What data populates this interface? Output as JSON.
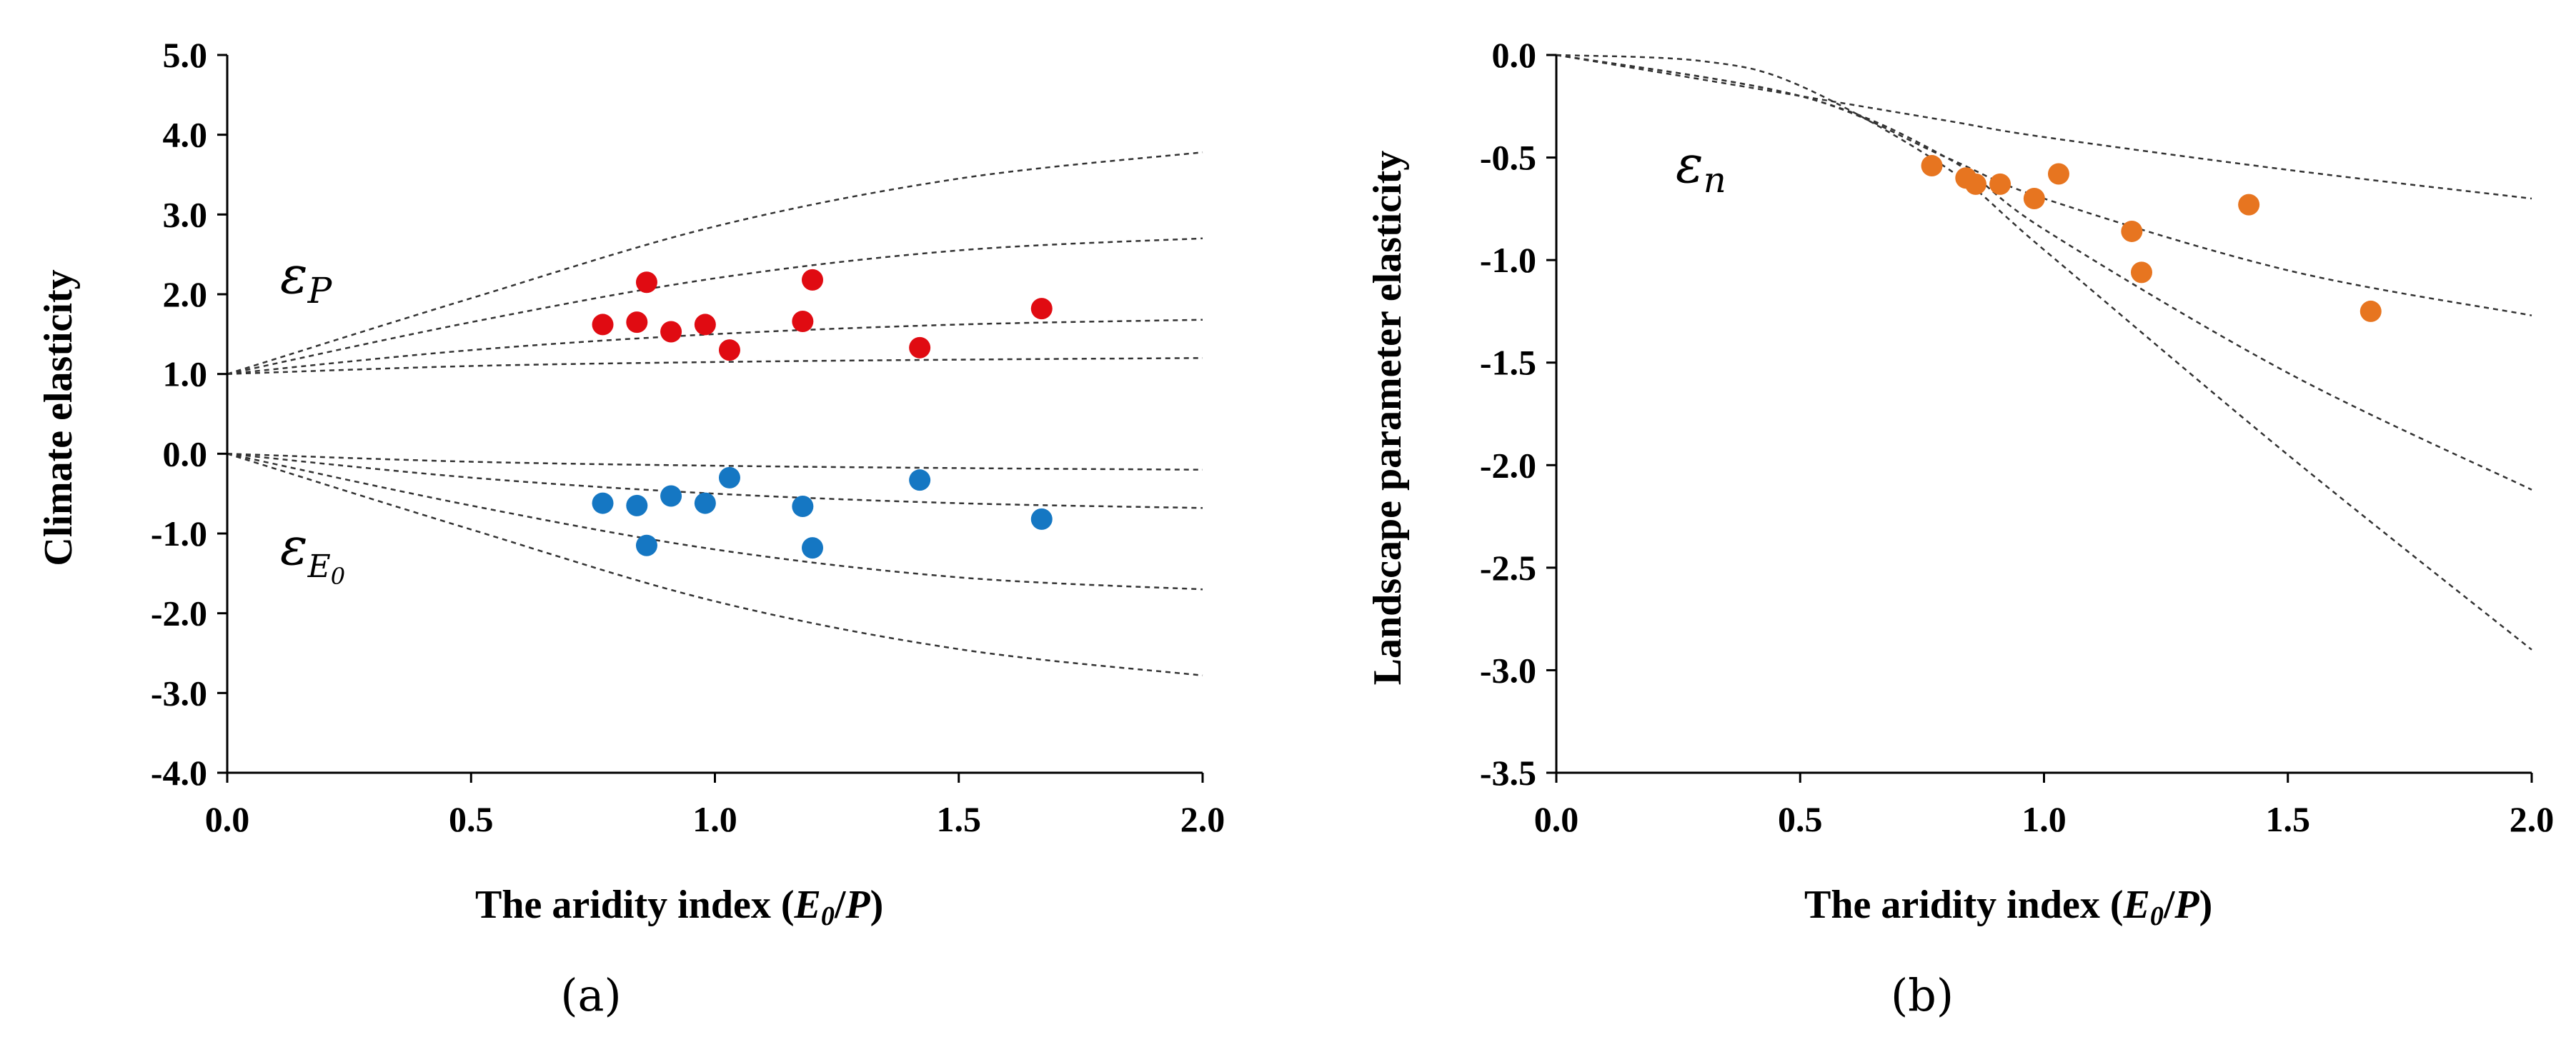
{
  "chart_data": [
    {
      "type": "scatter",
      "panel_label": "(a)",
      "xlabel": "The aridity index (",
      "xlabel_math": {
        "num": "E",
        "num_sub": "0",
        "slash": "/",
        "den": "P",
        "close": ")"
      },
      "ylabel": "Climate elasticity",
      "xlim": [
        0.0,
        2.0
      ],
      "ylim": [
        -4.0,
        5.0
      ],
      "x_ticks": [
        "0.0",
        "0.5",
        "1.0",
        "1.5",
        "2.0"
      ],
      "y_ticks": [
        "-4.0",
        "-3.0",
        "-2.0",
        "-1.0",
        "0.0",
        "1.0",
        "2.0",
        "3.0",
        "4.0",
        "5.0"
      ],
      "annotations": [
        {
          "symbol": "ε",
          "sub": "P",
          "series": "precipitation"
        },
        {
          "symbol": "ε",
          "sub": "E",
          "subsub": "0",
          "series": "evaporation"
        }
      ],
      "series": [
        {
          "name": "ε_P",
          "color": "#e00b12",
          "x": [
            0.77,
            0.84,
            0.86,
            0.91,
            0.98,
            1.03,
            1.18,
            1.2,
            1.42,
            1.67
          ],
          "y": [
            1.62,
            1.65,
            2.15,
            1.53,
            1.62,
            1.3,
            1.66,
            2.18,
            1.33,
            1.82
          ]
        },
        {
          "name": "ε_E0",
          "color": "#1577c3",
          "x": [
            0.77,
            0.84,
            0.86,
            0.91,
            0.98,
            1.03,
            1.18,
            1.2,
            1.42,
            1.67
          ],
          "y": [
            -0.62,
            -0.65,
            -1.15,
            -0.53,
            -0.62,
            -0.3,
            -0.66,
            -1.18,
            -0.33,
            -0.82
          ]
        }
      ],
      "reference_curves": [
        {
          "family": "P",
          "n": 4.0,
          "y_at": [
            [
              0,
              1.0
            ],
            [
              0.5,
              1.95
            ],
            [
              1.0,
              2.85
            ],
            [
              1.5,
              3.45
            ],
            [
              2.0,
              3.78
            ]
          ]
        },
        {
          "family": "P",
          "n": 2.5,
          "y_at": [
            [
              0,
              1.0
            ],
            [
              0.5,
              1.65
            ],
            [
              1.0,
              2.2
            ],
            [
              1.5,
              2.55
            ],
            [
              2.0,
              2.7
            ]
          ]
        },
        {
          "family": "P",
          "n": 1.5,
          "y_at": [
            [
              0,
              1.0
            ],
            [
              0.5,
              1.3
            ],
            [
              1.0,
              1.5
            ],
            [
              1.5,
              1.62
            ],
            [
              2.0,
              1.68
            ]
          ]
        },
        {
          "family": "P",
          "n": 1.0,
          "y_at": [
            [
              0,
              1.0
            ],
            [
              0.5,
              1.1
            ],
            [
              1.0,
              1.15
            ],
            [
              1.5,
              1.18
            ],
            [
              2.0,
              1.2
            ]
          ]
        },
        {
          "family": "E0",
          "n": 1.0,
          "y_at": [
            [
              0,
              0.0
            ],
            [
              0.5,
              -0.1
            ],
            [
              1.0,
              -0.15
            ],
            [
              1.5,
              -0.18
            ],
            [
              2.0,
              -0.2
            ]
          ]
        },
        {
          "family": "E0",
          "n": 1.5,
          "y_at": [
            [
              0,
              0.0
            ],
            [
              0.5,
              -0.3
            ],
            [
              1.0,
              -0.5
            ],
            [
              1.5,
              -0.62
            ],
            [
              2.0,
              -0.68
            ]
          ]
        },
        {
          "family": "E0",
          "n": 2.5,
          "y_at": [
            [
              0,
              0.0
            ],
            [
              0.5,
              -0.65
            ],
            [
              1.0,
              -1.2
            ],
            [
              1.5,
              -1.55
            ],
            [
              2.0,
              -1.7
            ]
          ]
        },
        {
          "family": "E0",
          "n": 4.0,
          "y_at": [
            [
              0,
              0.0
            ],
            [
              0.5,
              -0.95
            ],
            [
              1.0,
              -1.85
            ],
            [
              1.5,
              -2.45
            ],
            [
              2.0,
              -2.78
            ]
          ]
        }
      ]
    },
    {
      "type": "scatter",
      "panel_label": "(b)",
      "xlabel": "The aridity index (",
      "xlabel_math": {
        "num": "E",
        "num_sub": "0",
        "slash": "/",
        "den": "P",
        "close": ")"
      },
      "ylabel": "Landscape parameter elasticity",
      "xlim": [
        0.0,
        2.0
      ],
      "ylim": [
        -3.5,
        0.0
      ],
      "x_ticks": [
        "0.0",
        "0.5",
        "1.0",
        "1.5",
        "2.0"
      ],
      "y_ticks": [
        "-3.5",
        "-3.0",
        "-2.5",
        "-2.0",
        "-1.5",
        "-1.0",
        "-0.5",
        "0.0"
      ],
      "annotations": [
        {
          "symbol": "ε",
          "sub": "n",
          "series": "landscape"
        }
      ],
      "series": [
        {
          "name": "ε_n",
          "color": "#e77520",
          "x": [
            0.77,
            0.84,
            0.86,
            0.91,
            0.98,
            1.03,
            1.18,
            1.2,
            1.42,
            1.67
          ],
          "y": [
            -0.54,
            -0.6,
            -0.63,
            -0.63,
            -0.7,
            -0.58,
            -0.86,
            -1.06,
            -0.73,
            -1.25
          ]
        }
      ],
      "reference_curves": [
        {
          "n": 1.0,
          "y_at": [
            [
              0,
              0.0
            ],
            [
              0.5,
              -0.2
            ],
            [
              0.8,
              -0.32
            ],
            [
              1.0,
              -0.4
            ],
            [
              1.5,
              -0.56
            ],
            [
              2.0,
              -0.7
            ]
          ]
        },
        {
          "n": 1.5,
          "y_at": [
            [
              0,
              0.0
            ],
            [
              0.5,
              -0.2
            ],
            [
              0.8,
              -0.5
            ],
            [
              1.0,
              -0.7
            ],
            [
              1.5,
              -1.05
            ],
            [
              2.0,
              -1.27
            ]
          ]
        },
        {
          "n": 2.5,
          "y_at": [
            [
              0,
              0.0
            ],
            [
              0.5,
              -0.2
            ],
            [
              0.8,
              -0.5
            ],
            [
              1.0,
              -0.85
            ],
            [
              1.5,
              -1.55
            ],
            [
              2.0,
              -2.12
            ]
          ]
        },
        {
          "n": 4.0,
          "y_at": [
            [
              0,
              0.0
            ],
            [
              0.3,
              -0.03
            ],
            [
              0.5,
              -0.15
            ],
            [
              0.8,
              -0.55
            ],
            [
              1.0,
              -0.95
            ],
            [
              1.5,
              -1.95
            ],
            [
              2.0,
              -2.9
            ]
          ]
        }
      ]
    }
  ]
}
